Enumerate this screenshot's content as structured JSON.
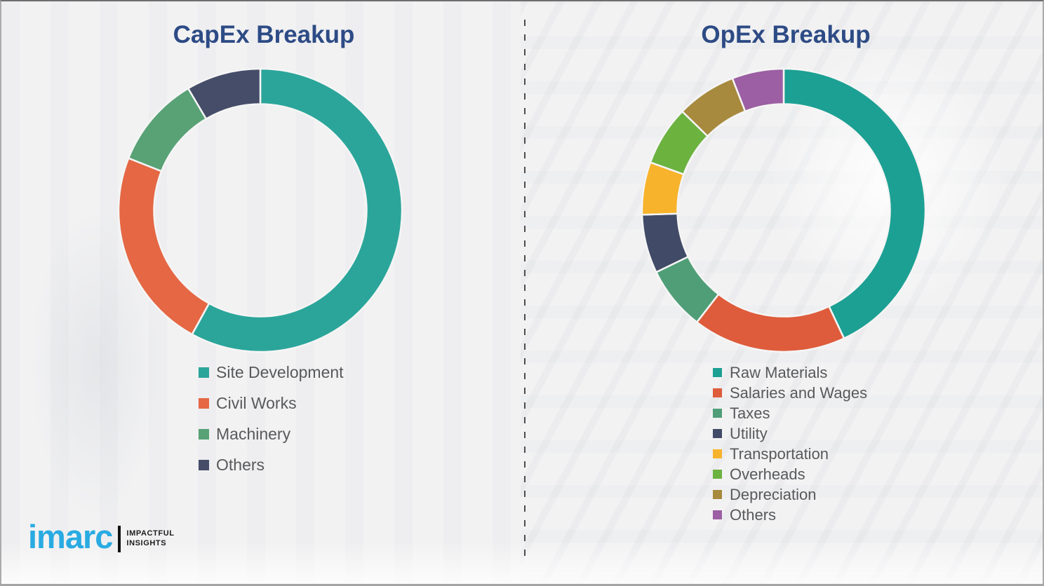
{
  "page": {
    "background_color": "#f2f2f3",
    "divider_color": "#4d4d4d",
    "title_color": "#2d4b85",
    "legend_text_color": "#58595b"
  },
  "chart_data": [
    {
      "type": "pie",
      "subtype": "donut",
      "title": "CapEx Breakup",
      "labels": [
        "Site Development",
        "Civil Works",
        "Machinery",
        "Others"
      ],
      "values": [
        58,
        23,
        10.5,
        8.5
      ],
      "values_note": "percent share estimated from arc angles; no numeric labels shown in image",
      "colors": [
        "#2ba59a",
        "#e56744",
        "#58a276",
        "#454d68"
      ],
      "start_angle_deg": 0,
      "direction": "clockwise",
      "inner_radius_ratio": 0.75,
      "legend_position": "below"
    },
    {
      "type": "pie",
      "subtype": "donut",
      "title": "OpEx Breakup",
      "labels": [
        "Raw Materials",
        "Salaries and Wages",
        "Taxes",
        "Utility",
        "Transportation",
        "Overheads",
        "Depreciation",
        "Others"
      ],
      "values": [
        43,
        17.5,
        7.3,
        6.7,
        6,
        6.8,
        6.8,
        5.9
      ],
      "values_note": "percent share estimated from arc angles; no numeric labels shown in image",
      "colors": [
        "#1ca093",
        "#de5c3b",
        "#4f9e77",
        "#414a66",
        "#f7b32b",
        "#6bb23f",
        "#a78a3e",
        "#9c5fa3"
      ],
      "start_angle_deg": 0,
      "direction": "clockwise",
      "inner_radius_ratio": 0.75,
      "legend_position": "below"
    }
  ],
  "logo": {
    "brand": "imarc",
    "brand_color": "#29abe2",
    "tagline_line1": "IMPACTFUL",
    "tagline_line2": "INSIGHTS"
  }
}
